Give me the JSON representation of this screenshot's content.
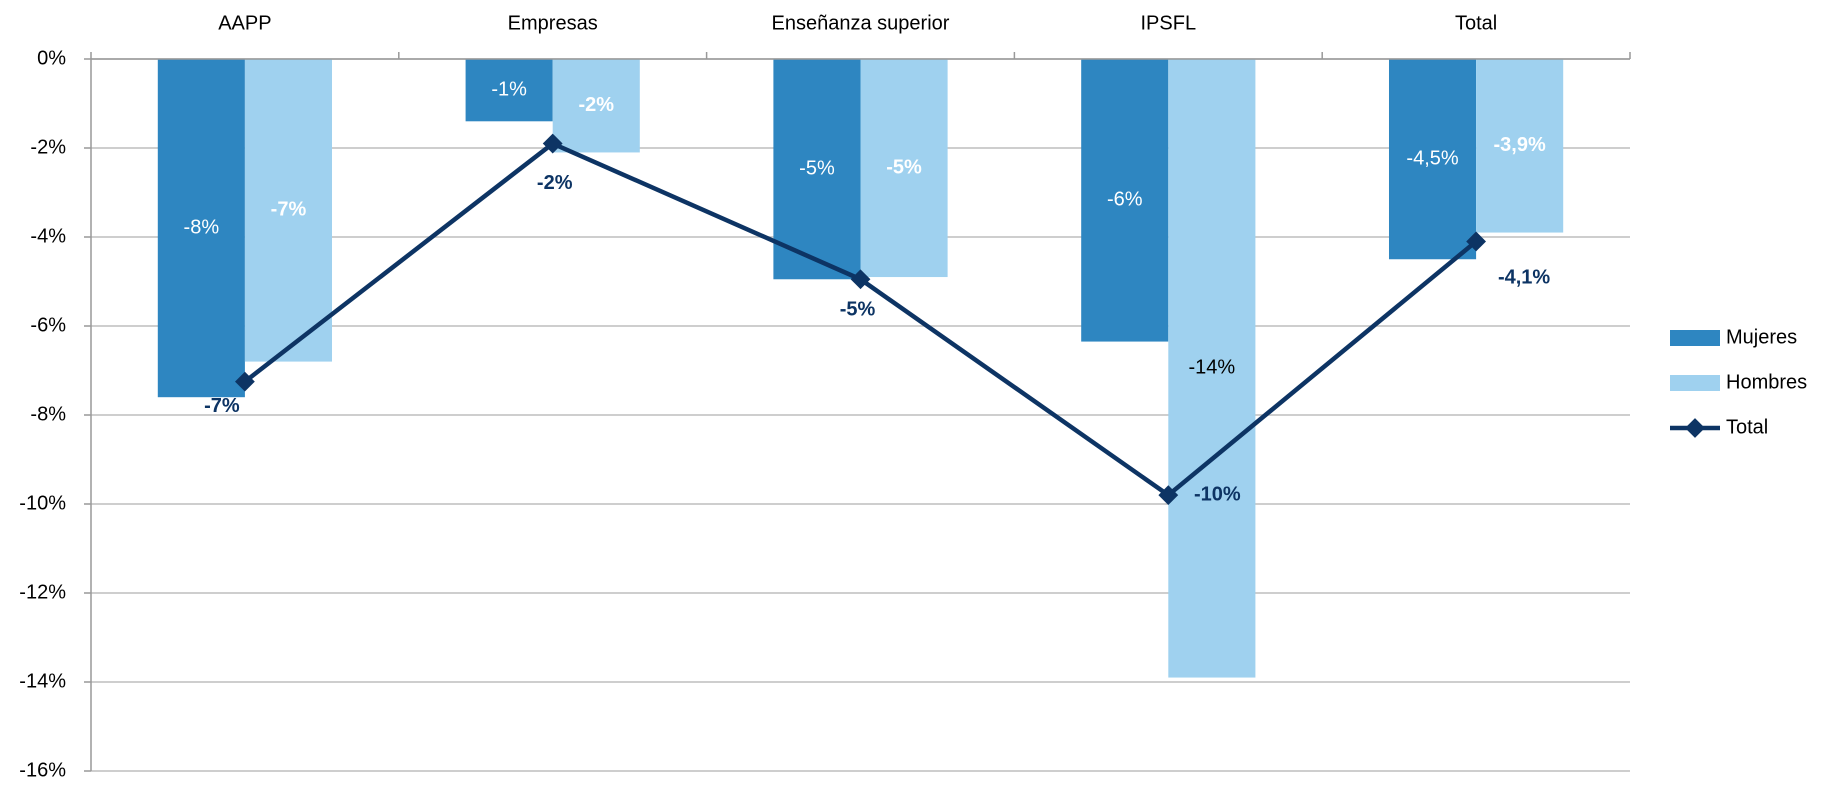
{
  "chart_data": {
    "type": "bar-line",
    "categories": [
      "AAPP",
      "Empresas",
      "Enseñanza superior",
      "IPSFL",
      "Total"
    ],
    "series": [
      {
        "name": "Mujeres",
        "type": "bar",
        "color": "#2e86c1",
        "values": [
          -7.6,
          -1.4,
          -4.95,
          -6.35,
          -4.5
        ],
        "value_labels": [
          "-8%",
          "-1%",
          "-5%",
          "-6%",
          "-4,5%"
        ]
      },
      {
        "name": "Hombres",
        "type": "bar",
        "color": "#9fd1ef",
        "values": [
          -6.8,
          -2.1,
          -4.9,
          -13.9,
          -3.9
        ],
        "value_labels": [
          "-7%",
          "-2%",
          "-5%",
          "-14%",
          "-3,9%"
        ]
      },
      {
        "name": "Total",
        "type": "line",
        "color": "#0d3464",
        "values": [
          -7.25,
          -1.9,
          -4.95,
          -9.8,
          -4.1
        ],
        "value_labels": [
          "-7%",
          "-2%",
          "-5%",
          "-10%",
          "-4,1%"
        ]
      }
    ],
    "ylim": [
      -16,
      0
    ],
    "yticks": [
      {
        "value": 0,
        "label": "0%"
      },
      {
        "value": -2,
        "label": "-2%"
      },
      {
        "value": -4,
        "label": "-4%"
      },
      {
        "value": -6,
        "label": "-6%"
      },
      {
        "value": -8,
        "label": "-8%"
      },
      {
        "value": -10,
        "label": "-10%"
      },
      {
        "value": -12,
        "label": "-12%"
      },
      {
        "value": -14,
        "label": "-14%"
      },
      {
        "value": -16,
        "label": "-16%"
      }
    ],
    "grid": true,
    "legend": "right"
  }
}
